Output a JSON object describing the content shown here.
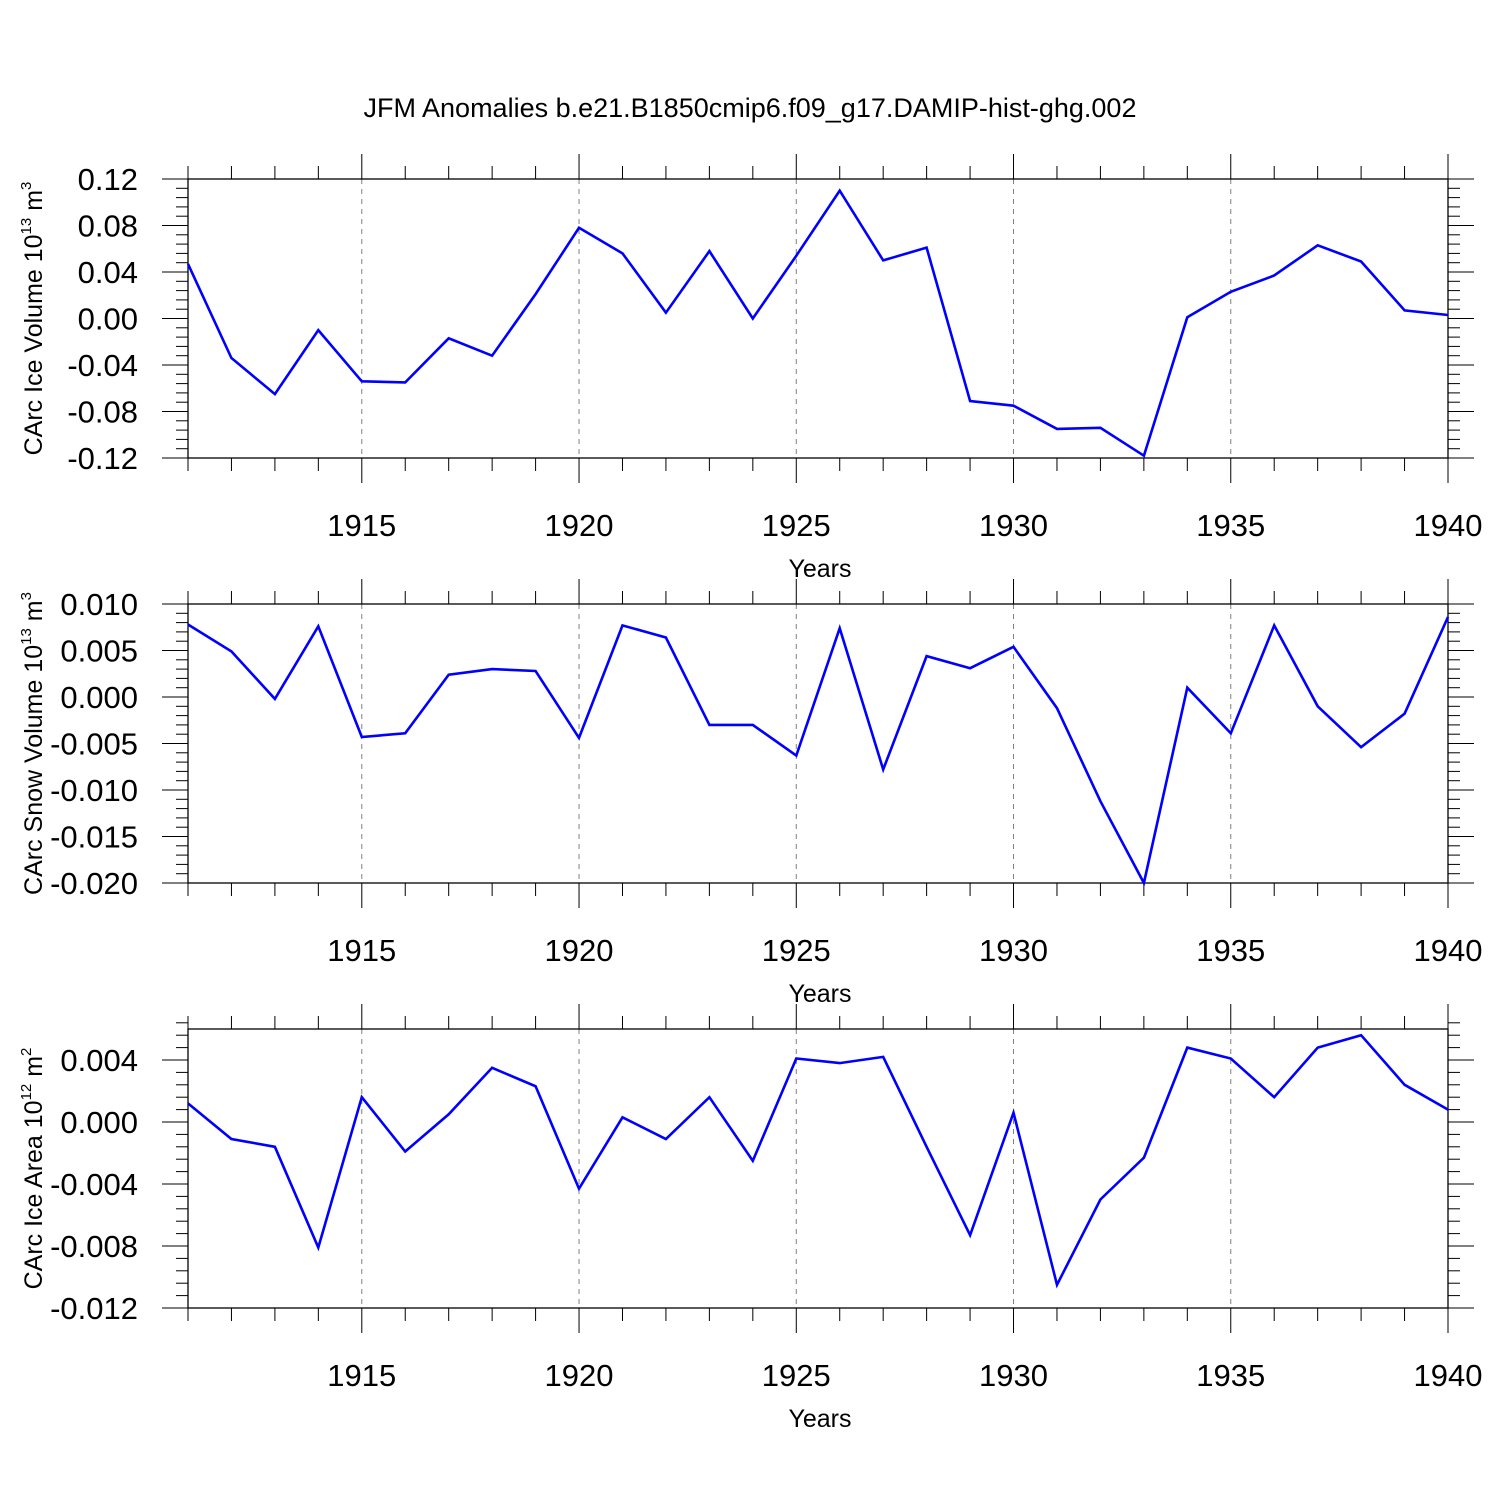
{
  "title": "JFM Anomalies b.e21.B1850cmip6.f09_g17.DAMIP-hist-ghg.002",
  "colors": {
    "line": "#0000ff",
    "axis": "#000000",
    "grid": "#808080",
    "background": "#ffffff"
  },
  "chart_data": [
    {
      "type": "line",
      "xlabel": "Years",
      "ylabel": {
        "prefix": "CArc Ice Volume 10",
        "exp": "13",
        "unit": " m",
        "unit_exp": "3"
      },
      "xlim": [
        1911,
        1940
      ],
      "ylim": [
        -0.12,
        0.12
      ],
      "xticks": [
        1915,
        1920,
        1925,
        1930,
        1935,
        1940
      ],
      "yticks": [
        0.12,
        0.08,
        0.04,
        0.0,
        -0.04,
        -0.08,
        -0.12
      ],
      "ytick_labels": [
        "0.12",
        "0.08",
        "0.04",
        "0.00",
        "-0.04",
        "-0.08",
        "-0.12"
      ],
      "grid": "vertical dashed at major x ticks",
      "series": [
        {
          "x": [
            1911,
            1912,
            1913,
            1914,
            1915,
            1916,
            1917,
            1918,
            1919,
            1920,
            1921,
            1922,
            1923,
            1924,
            1925,
            1926,
            1927,
            1928,
            1929,
            1930,
            1931,
            1932,
            1933,
            1934,
            1935,
            1936,
            1937,
            1938,
            1939,
            1940
          ],
          "values": [
            0.047,
            -0.034,
            -0.065,
            -0.01,
            -0.054,
            -0.055,
            -0.017,
            -0.032,
            0.021,
            0.078,
            0.056,
            0.005,
            0.058,
            0.0,
            0.054,
            0.11,
            0.05,
            0.061,
            -0.071,
            -0.075,
            -0.095,
            -0.094,
            -0.118,
            0.001,
            0.023,
            0.037,
            0.063,
            0.049,
            0.007,
            0.003
          ]
        }
      ]
    },
    {
      "type": "line",
      "xlabel": "Years",
      "ylabel": {
        "prefix": "CArc Snow Volume 10",
        "exp": "13",
        "unit": " m",
        "unit_exp": "3"
      },
      "xlim": [
        1911,
        1940
      ],
      "ylim": [
        -0.02,
        0.01
      ],
      "xticks": [
        1915,
        1920,
        1925,
        1930,
        1935,
        1940
      ],
      "yticks": [
        0.01,
        0.005,
        0.0,
        -0.005,
        -0.01,
        -0.015,
        -0.02
      ],
      "ytick_labels": [
        "0.010",
        "0.005",
        "0.000",
        "-0.005",
        "-0.010",
        "-0.015",
        "-0.020"
      ],
      "grid": "vertical dashed at major x ticks",
      "series": [
        {
          "x": [
            1911,
            1912,
            1913,
            1914,
            1915,
            1916,
            1917,
            1918,
            1919,
            1920,
            1921,
            1922,
            1923,
            1924,
            1925,
            1926,
            1927,
            1928,
            1929,
            1930,
            1931,
            1932,
            1933,
            1934,
            1935,
            1936,
            1937,
            1938,
            1939,
            1940
          ],
          "values": [
            0.0078,
            0.0049,
            -0.0002,
            0.0076,
            -0.0043,
            -0.0039,
            0.0024,
            0.003,
            0.0028,
            -0.0044,
            0.0077,
            0.0064,
            -0.003,
            -0.003,
            -0.0063,
            0.0074,
            -0.0078,
            0.0044,
            0.0031,
            0.0054,
            -0.0012,
            -0.0112,
            -0.02,
            0.001,
            -0.0039,
            0.0077,
            -0.001,
            -0.0054,
            -0.0018,
            0.0086
          ]
        }
      ]
    },
    {
      "type": "line",
      "xlabel": "Years",
      "ylabel": {
        "prefix": "CArc Ice Area 10",
        "exp": "12",
        "unit": " m",
        "unit_exp": "2"
      },
      "xlim": [
        1911,
        1940
      ],
      "ylim": [
        -0.012,
        0.006
      ],
      "xticks": [
        1915,
        1920,
        1925,
        1930,
        1935,
        1940
      ],
      "yticks": [
        0.004,
        0.0,
        -0.004,
        -0.008,
        -0.012
      ],
      "ytick_labels": [
        "0.004",
        "0.000",
        "-0.004",
        "-0.008",
        "-0.012"
      ],
      "grid": "vertical dashed at major x ticks",
      "series": [
        {
          "x": [
            1911,
            1912,
            1913,
            1914,
            1915,
            1916,
            1917,
            1918,
            1919,
            1920,
            1921,
            1922,
            1923,
            1924,
            1925,
            1926,
            1927,
            1928,
            1929,
            1930,
            1931,
            1932,
            1933,
            1934,
            1935,
            1936,
            1937,
            1938,
            1939,
            1940
          ],
          "values": [
            0.0012,
            -0.0011,
            -0.0016,
            -0.0081,
            0.0016,
            -0.0019,
            0.0005,
            0.0035,
            0.0023,
            -0.0043,
            0.0003,
            -0.0011,
            0.0016,
            -0.0025,
            0.0041,
            0.0038,
            0.0042,
            -0.0016,
            -0.0073,
            0.0006,
            -0.0105,
            -0.005,
            -0.0023,
            0.0048,
            0.0041,
            0.0016,
            0.0048,
            0.0056,
            0.0024,
            0.0008
          ]
        }
      ]
    }
  ]
}
